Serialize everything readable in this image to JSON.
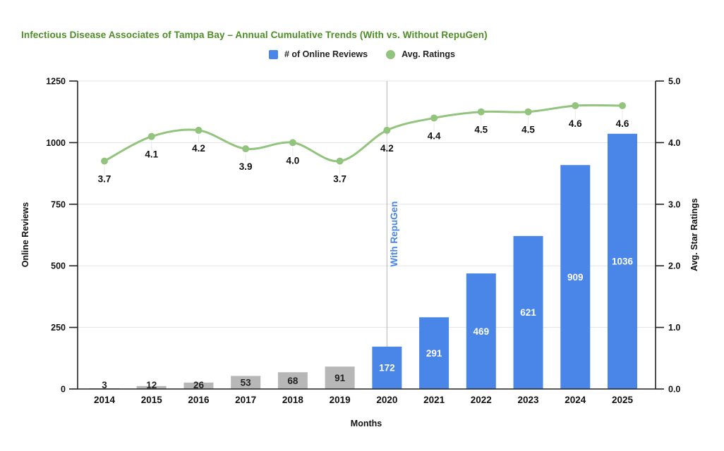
{
  "legend": {
    "items": [
      {
        "label": "# of Online Reviews",
        "marker": "square",
        "color": "#4a86e8"
      },
      {
        "label": "Avg. Ratings",
        "marker": "circle",
        "color": "#93c47d"
      }
    ]
  },
  "chart_data": {
    "type": "bar",
    "title": "Infectious Disease Associates of Tampa Bay – Annual Cumulative Trends (With vs. Without RepuGen)",
    "title_color": "#4e8c28",
    "categories": [
      "2014",
      "2015",
      "2016",
      "2017",
      "2018",
      "2019",
      "2020",
      "2021",
      "2022",
      "2023",
      "2024",
      "2025"
    ],
    "series": [
      {
        "name": "# of Online Reviews",
        "type": "bar",
        "axis": "left",
        "values": [
          3,
          12,
          26,
          53,
          68,
          91,
          172,
          291,
          469,
          621,
          909,
          1036
        ],
        "labels": [
          "3",
          "12",
          "26",
          "53",
          "68",
          "91",
          "172",
          "291",
          "469",
          "621",
          "909",
          "1036"
        ],
        "repugen_start_index": 6,
        "color_without": "#b7b7b7",
        "color_with": "#4a86e8",
        "label_color_without": "#222222",
        "label_color_with": "#ffffff"
      },
      {
        "name": "Avg. Ratings",
        "type": "line",
        "axis": "right",
        "values": [
          3.7,
          4.1,
          4.2,
          3.9,
          4.0,
          3.7,
          4.2,
          4.4,
          4.5,
          4.5,
          4.6,
          4.6
        ],
        "labels": [
          "3.7",
          "4.1",
          "4.2",
          "3.9",
          "4.0",
          "3.7",
          "4.2",
          "4.4",
          "4.5",
          "4.5",
          "4.6",
          "4.6"
        ],
        "color": "#93c47d"
      }
    ],
    "x_axis": {
      "title": "Months"
    },
    "left_axis": {
      "title": "Online Reviews",
      "min": 0,
      "max": 1250,
      "ticks": [
        "0",
        "250",
        "500",
        "750",
        "1000",
        "1250"
      ],
      "tick_values": [
        0,
        250,
        500,
        750,
        1000,
        1250
      ]
    },
    "right_axis": {
      "title": "Avg. Star Ratings",
      "min": 0,
      "max": 5,
      "ticks": [
        "0.0",
        "1.0",
        "2.0",
        "3.0",
        "4.0",
        "5.0"
      ],
      "tick_values": [
        0,
        1,
        2,
        3,
        4,
        5
      ]
    },
    "separator": {
      "category": "2020",
      "label": "With RepuGen",
      "line_color": "#b3b3b3",
      "label_color": "#4a86e8"
    },
    "grid": true,
    "legend_position": "top"
  }
}
